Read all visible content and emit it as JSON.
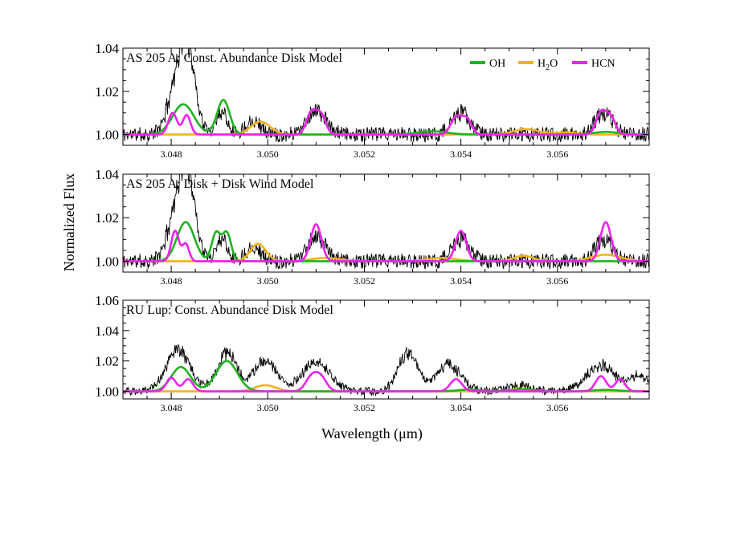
{
  "figure": {
    "ylabel": "Normalized Flux",
    "xlabel": "Wavelength (μm)"
  },
  "legend": [
    {
      "name": "OH",
      "color": "#1fb31f"
    },
    {
      "name": "H",
      "sub": "2",
      "tail": "O",
      "color": "#f2b21c"
    },
    {
      "name": "HCN",
      "color": "#ee22ee"
    }
  ],
  "colors": {
    "data": "#000000",
    "OH": "#1fb31f",
    "H2O": "#f2b21c",
    "HCN": "#ee22ee"
  },
  "chart_data": [
    {
      "type": "line",
      "title": "AS 205 A:  Const. Abundance Disk Model",
      "xlim": [
        3.047,
        3.0579
      ],
      "ylim": [
        0.995,
        1.04
      ],
      "xticks": [
        "3.048",
        "3.050",
        "3.052",
        "3.054",
        "3.056"
      ],
      "xtick_values": [
        3.048,
        3.05,
        3.052,
        3.054,
        3.056
      ],
      "yticks": [
        "1.00",
        "1.02",
        "1.04"
      ],
      "ytick_values": [
        1.0,
        1.02,
        1.04
      ],
      "data_spectrum": {
        "baseline": 1.0,
        "noise": 0.0035,
        "seed": 11,
        "features": [
          {
            "center": 3.04813,
            "height": 0.026,
            "width": 0.00018
          },
          {
            "center": 3.04837,
            "height": 0.031,
            "width": 0.00015
          },
          {
            "center": 3.04905,
            "height": 0.011,
            "width": 0.00012
          },
          {
            "center": 3.0497,
            "height": 0.007,
            "width": 0.00015
          },
          {
            "center": 3.051,
            "height": 0.011,
            "width": 0.0002
          },
          {
            "center": 3.054,
            "height": 0.01,
            "width": 0.00018
          },
          {
            "center": 3.05696,
            "height": 0.01,
            "width": 0.00018
          }
        ]
      },
      "series": [
        {
          "name": "OH",
          "color": "#1fb31f",
          "features": [
            {
              "center": 3.04825,
              "height": 0.014,
              "width": 0.00022
            },
            {
              "center": 3.04908,
              "height": 0.016,
              "width": 0.00013
            },
            {
              "center": 3.0534,
              "height": 0.0015,
              "width": 0.0003
            },
            {
              "center": 3.057,
              "height": 0.0012,
              "width": 0.00025
            }
          ]
        },
        {
          "name": "H2O",
          "color": "#f2b21c",
          "features": [
            {
              "center": 3.04985,
              "height": 0.006,
              "width": 0.0002
            },
            {
              "center": 3.05535,
              "height": 0.0025,
              "width": 0.00025
            },
            {
              "center": 3.0562,
              "height": 0.001,
              "width": 0.0002
            }
          ]
        },
        {
          "name": "HCN",
          "color": "#ee22ee",
          "features": [
            {
              "center": 3.04803,
              "height": 0.01,
              "width": 9e-05
            },
            {
              "center": 3.04832,
              "height": 0.009,
              "width": 8e-05
            },
            {
              "center": 3.0509,
              "height": 0.01,
              "width": 0.0001
            },
            {
              "center": 3.0511,
              "height": 0.009,
              "width": 0.0001
            },
            {
              "center": 3.0539,
              "height": 0.008,
              "width": 0.00011
            },
            {
              "center": 3.05412,
              "height": 0.007,
              "width": 0.0001
            },
            {
              "center": 3.0569,
              "height": 0.01,
              "width": 0.0001
            },
            {
              "center": 3.0571,
              "height": 0.008,
              "width": 0.0001
            }
          ]
        }
      ]
    },
    {
      "type": "line",
      "title": "AS 205 A:  Disk + Disk Wind Model",
      "xlim": [
        3.047,
        3.0579
      ],
      "ylim": [
        0.995,
        1.04
      ],
      "xticks": [
        "3.048",
        "3.050",
        "3.052",
        "3.054",
        "3.056"
      ],
      "xtick_values": [
        3.048,
        3.05,
        3.052,
        3.054,
        3.056
      ],
      "yticks": [
        "1.00",
        "1.02",
        "1.04"
      ],
      "ytick_values": [
        1.0,
        1.02,
        1.04
      ],
      "data_spectrum": {
        "baseline": 1.0,
        "noise": 0.0035,
        "seed": 11,
        "features": [
          {
            "center": 3.04813,
            "height": 0.026,
            "width": 0.00018
          },
          {
            "center": 3.04837,
            "height": 0.031,
            "width": 0.00015
          },
          {
            "center": 3.04905,
            "height": 0.011,
            "width": 0.00012
          },
          {
            "center": 3.0497,
            "height": 0.007,
            "width": 0.00015
          },
          {
            "center": 3.051,
            "height": 0.011,
            "width": 0.0002
          },
          {
            "center": 3.054,
            "height": 0.01,
            "width": 0.00018
          },
          {
            "center": 3.05696,
            "height": 0.01,
            "width": 0.00018
          }
        ]
      },
      "series": [
        {
          "name": "OH",
          "color": "#1fb31f",
          "features": [
            {
              "center": 3.0483,
              "height": 0.018,
              "width": 0.00018
            },
            {
              "center": 3.04893,
              "height": 0.013,
              "width": 9e-05
            },
            {
              "center": 3.04915,
              "height": 0.013,
              "width": 9e-05
            }
          ]
        },
        {
          "name": "H2O",
          "color": "#f2b21c",
          "features": [
            {
              "center": 3.0498,
              "height": 0.008,
              "width": 0.00016
            },
            {
              "center": 3.0512,
              "height": 0.0015,
              "width": 0.0003
            },
            {
              "center": 3.0536,
              "height": 0.0015,
              "width": 0.0003
            },
            {
              "center": 3.0553,
              "height": 0.0025,
              "width": 0.0002
            },
            {
              "center": 3.057,
              "height": 0.003,
              "width": 0.0003
            }
          ]
        },
        {
          "name": "HCN",
          "color": "#ee22ee",
          "features": [
            {
              "center": 3.04808,
              "height": 0.014,
              "width": 8e-05
            },
            {
              "center": 3.0483,
              "height": 0.008,
              "width": 7e-05
            },
            {
              "center": 3.051,
              "height": 0.017,
              "width": 0.00011
            },
            {
              "center": 3.054,
              "height": 0.014,
              "width": 0.00011
            },
            {
              "center": 3.057,
              "height": 0.018,
              "width": 0.00011
            }
          ]
        }
      ]
    },
    {
      "type": "line",
      "title": "RU Lup:  Const. Abundance Disk Model",
      "xlim": [
        3.047,
        3.0579
      ],
      "ylim": [
        0.995,
        1.06
      ],
      "xticks": [
        "3.048",
        "3.050",
        "3.052",
        "3.054",
        "3.056"
      ],
      "xtick_values": [
        3.048,
        3.05,
        3.052,
        3.054,
        3.056
      ],
      "yticks": [
        "1.00",
        "1.02",
        "1.04",
        "1.06"
      ],
      "ytick_values": [
        1.0,
        1.02,
        1.04,
        1.06
      ],
      "data_spectrum": {
        "baseline": 1.0,
        "noise": 0.0028,
        "seed": 29,
        "features": [
          {
            "center": 3.04815,
            "height": 0.027,
            "width": 0.00025
          },
          {
            "center": 3.04915,
            "height": 0.025,
            "width": 0.0002
          },
          {
            "center": 3.04995,
            "height": 0.02,
            "width": 0.00025
          },
          {
            "center": 3.051,
            "height": 0.019,
            "width": 0.00028
          },
          {
            "center": 3.0529,
            "height": 0.025,
            "width": 0.0002
          },
          {
            "center": 3.05375,
            "height": 0.018,
            "width": 0.00025
          },
          {
            "center": 3.0552,
            "height": 0.004,
            "width": 0.00025
          },
          {
            "center": 3.0569,
            "height": 0.017,
            "width": 0.0003
          },
          {
            "center": 3.0577,
            "height": 0.01,
            "width": 0.0002
          }
        ]
      },
      "series": [
        {
          "name": "OH",
          "color": "#1fb31f",
          "features": [
            {
              "center": 3.0482,
              "height": 0.016,
              "width": 0.0002
            },
            {
              "center": 3.04915,
              "height": 0.02,
              "width": 0.00022
            },
            {
              "center": 3.0542,
              "height": 0.0012,
              "width": 0.00025
            },
            {
              "center": 3.0553,
              "height": 0.0015,
              "width": 0.00025
            },
            {
              "center": 3.057,
              "height": 0.001,
              "width": 0.00025
            }
          ]
        },
        {
          "name": "H2O",
          "color": "#f2b21c",
          "features": [
            {
              "center": 3.04995,
              "height": 0.004,
              "width": 0.00022
            },
            {
              "center": 3.0552,
              "height": 0.0015,
              "width": 0.0002
            }
          ]
        },
        {
          "name": "HCN",
          "color": "#ee22ee",
          "features": [
            {
              "center": 3.048,
              "height": 0.009,
              "width": 0.0001
            },
            {
              "center": 3.04835,
              "height": 0.008,
              "width": 0.0001
            },
            {
              "center": 3.0509,
              "height": 0.009,
              "width": 0.00012
            },
            {
              "center": 3.0511,
              "height": 0.009,
              "width": 0.00012
            },
            {
              "center": 3.0539,
              "height": 0.008,
              "width": 0.00012
            },
            {
              "center": 3.0569,
              "height": 0.01,
              "width": 0.00011
            },
            {
              "center": 3.0573,
              "height": 0.008,
              "width": 0.0001
            }
          ]
        }
      ]
    }
  ]
}
